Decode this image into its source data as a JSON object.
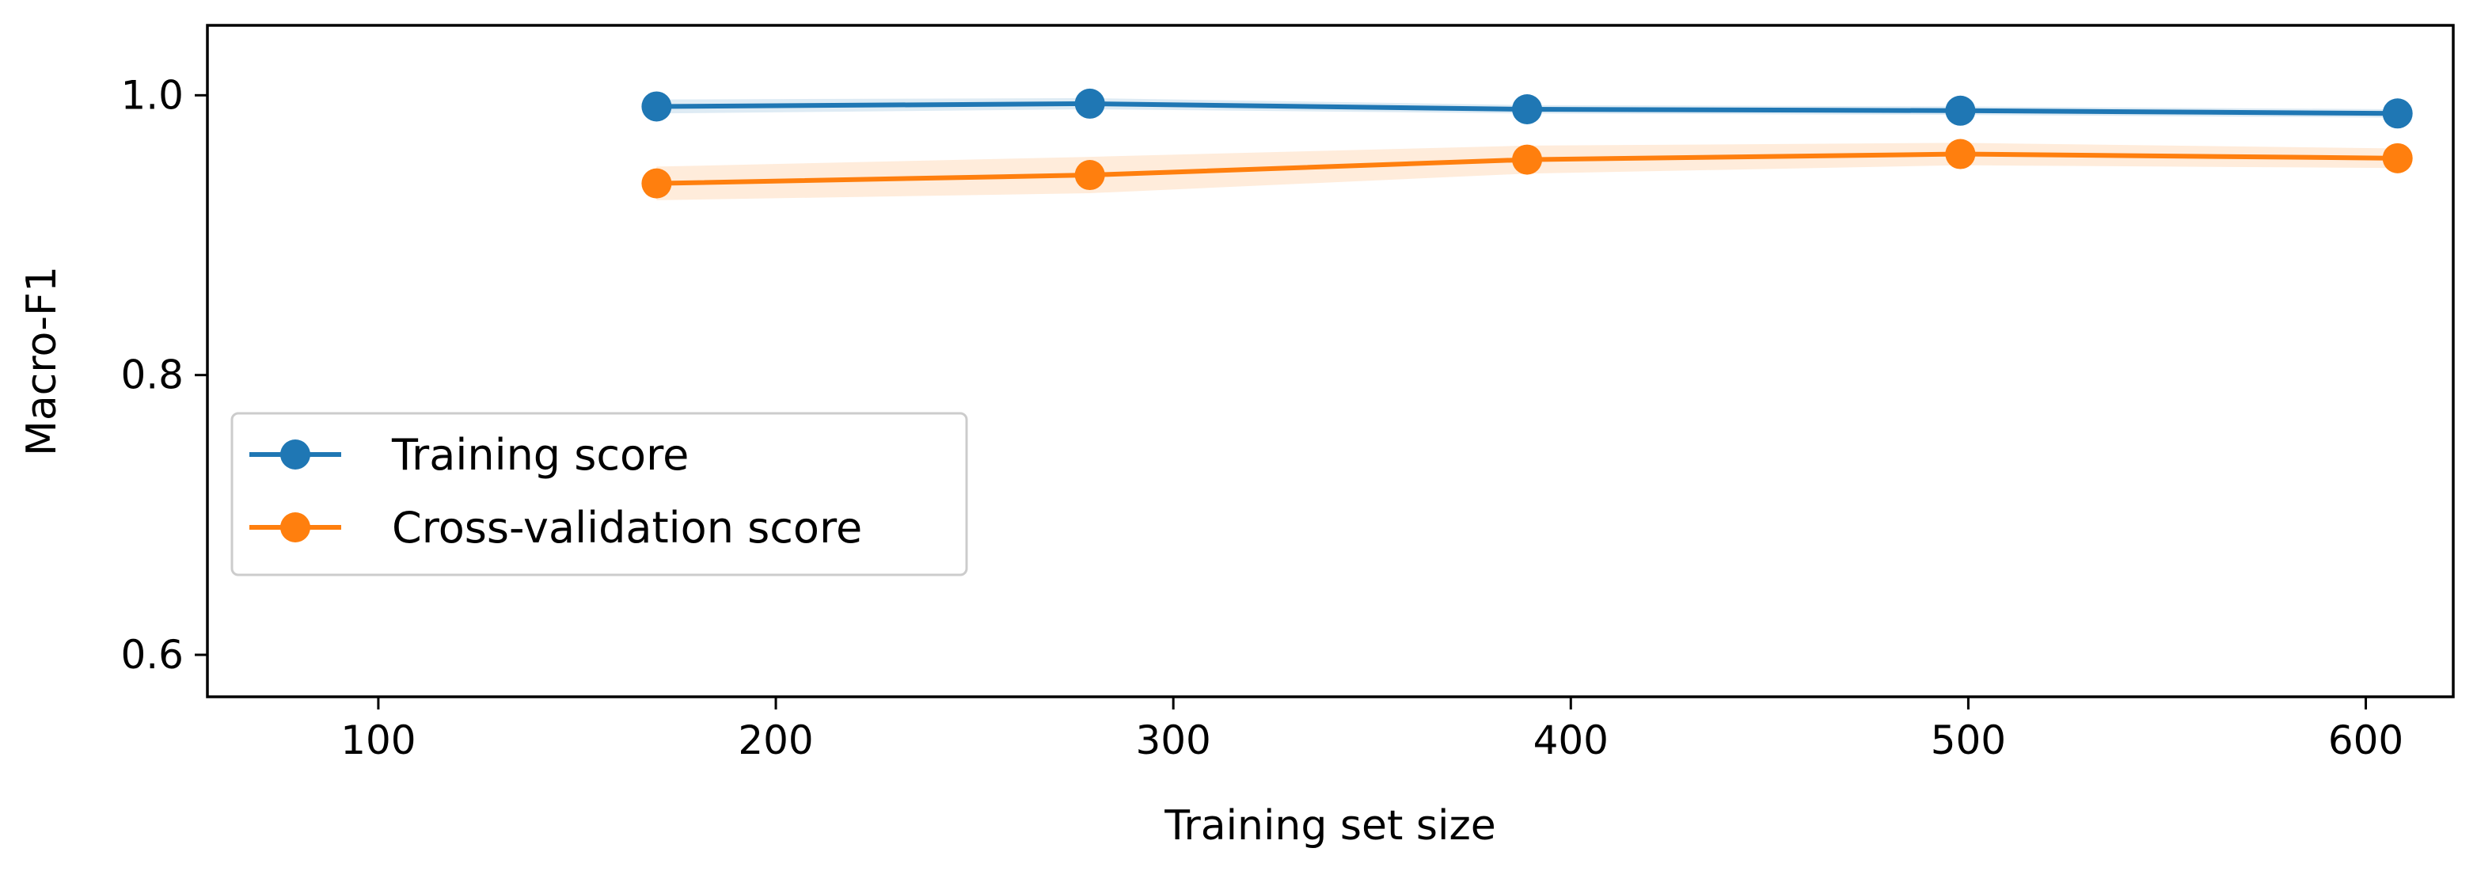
{
  "chart_data": {
    "type": "line",
    "title": "",
    "xlabel": "Training set size",
    "ylabel": "Macro-F1",
    "xlim": [
      57,
      622
    ],
    "ylim": [
      0.57,
      1.05
    ],
    "x_ticks": [
      100,
      200,
      300,
      400,
      500,
      600
    ],
    "y_ticks": [
      0.6,
      0.8,
      1.0
    ],
    "x_tick_labels": [
      "100",
      "200",
      "300",
      "400",
      "500",
      "600"
    ],
    "y_tick_labels": [
      "0.6",
      "0.8",
      "1.0"
    ],
    "grid": false,
    "legend_position": "center-left",
    "x": [
      170,
      279,
      389,
      498,
      608
    ],
    "series": [
      {
        "name": "Training score",
        "color": "#1f77b4",
        "values": [
          0.992,
          0.994,
          0.99,
          0.989,
          0.987
        ],
        "band_lower": [
          0.987,
          0.99,
          0.987,
          0.986,
          0.984
        ],
        "band_upper": [
          0.997,
          0.998,
          0.993,
          0.992,
          0.99
        ]
      },
      {
        "name": "Cross-validation score",
        "color": "#ff7f0e",
        "values": [
          0.937,
          0.943,
          0.954,
          0.958,
          0.955
        ],
        "band_lower": [
          0.925,
          0.93,
          0.944,
          0.95,
          0.948
        ],
        "band_upper": [
          0.949,
          0.956,
          0.964,
          0.966,
          0.962
        ]
      }
    ]
  }
}
